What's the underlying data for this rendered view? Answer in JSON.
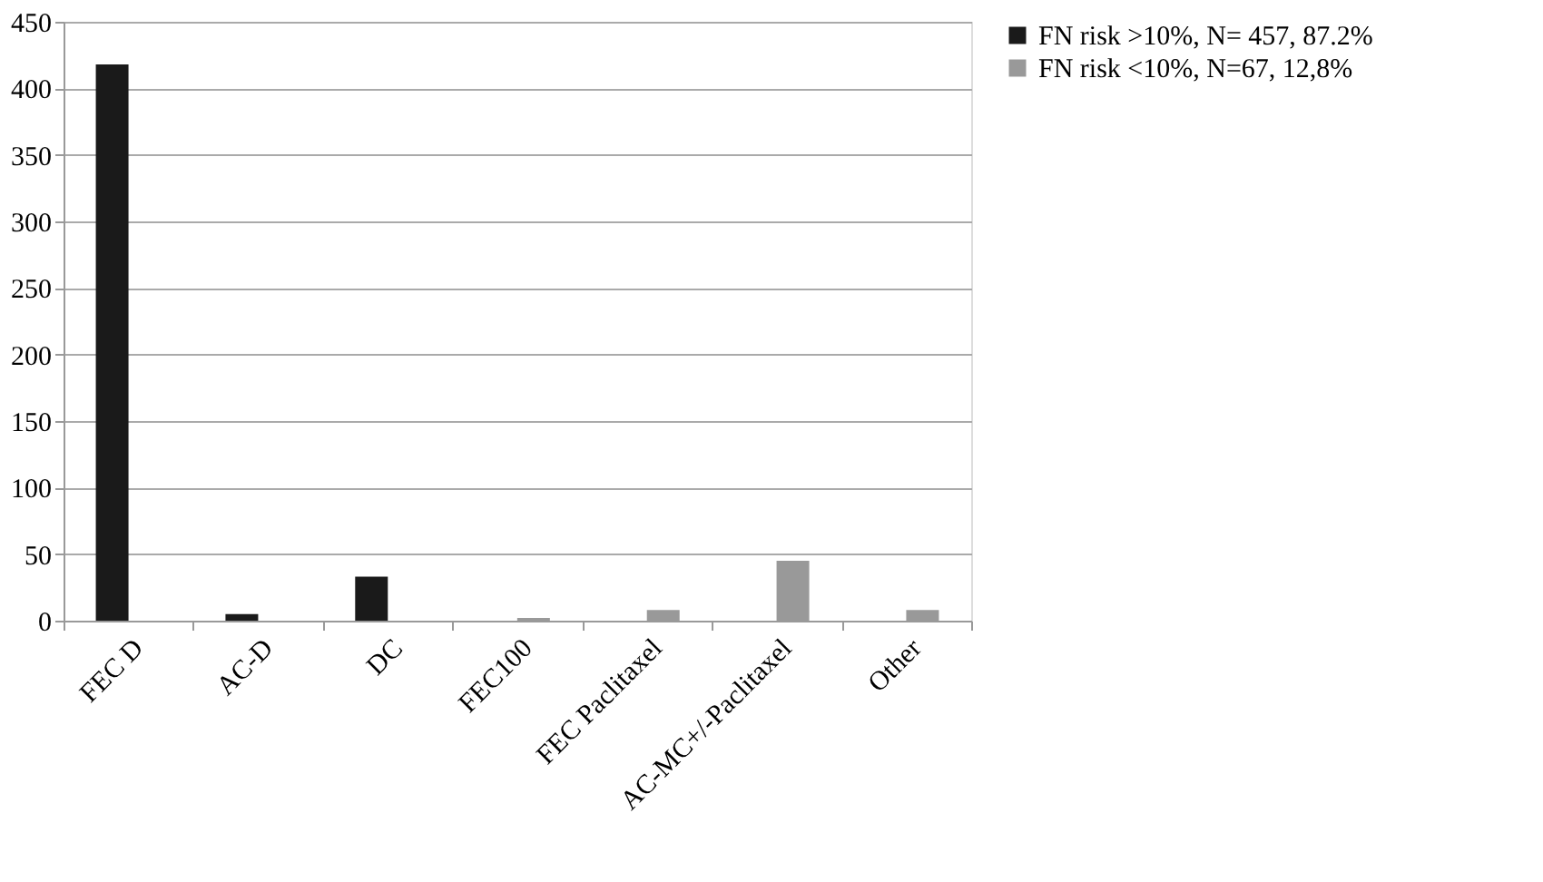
{
  "chart_data": {
    "type": "bar",
    "categories": [
      "FEC D",
      "AC-D",
      "DC",
      "FEC100",
      "FEC Paclitaxel",
      "AC-MC+/-Paclitaxel",
      "Other"
    ],
    "series": [
      {
        "name": "FN risk >10%, N= 457, 87.2%",
        "color": "#1a1a1a",
        "values": [
          418,
          5,
          33,
          null,
          null,
          null,
          null
        ]
      },
      {
        "name": "FN risk <10%, N=67, 12,8%",
        "color": "#999999",
        "values": [
          null,
          null,
          null,
          2,
          8,
          45,
          8
        ]
      }
    ],
    "ylim": [
      0,
      450
    ],
    "yticks": [
      0,
      50,
      100,
      150,
      200,
      250,
      300,
      350,
      400,
      450
    ],
    "grid": "y",
    "legend": "right"
  }
}
